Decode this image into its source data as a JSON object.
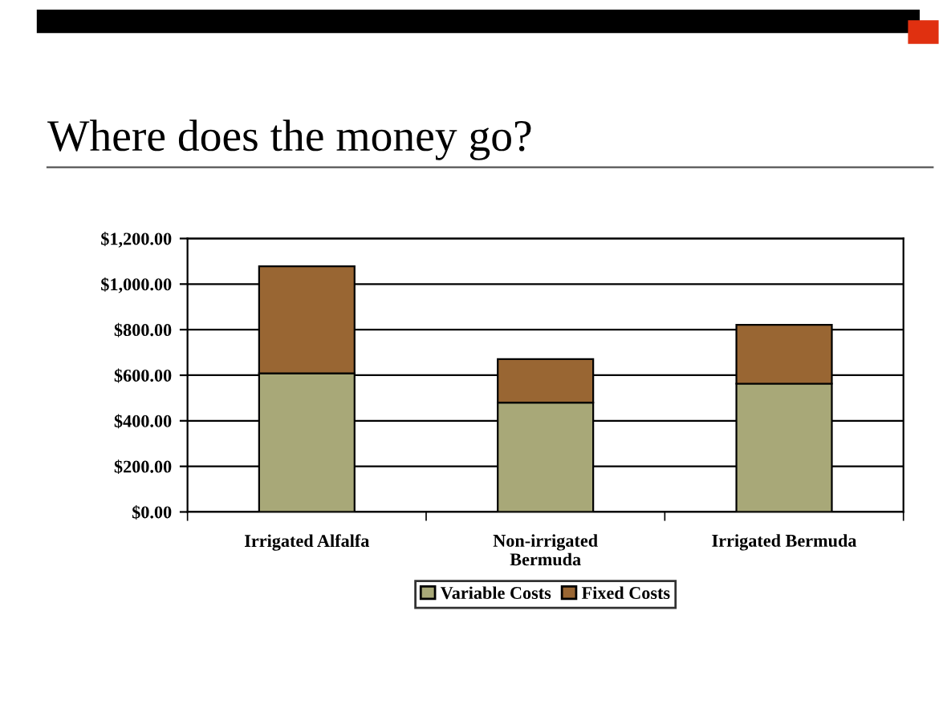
{
  "chart_data": {
    "type": "bar",
    "title": "Where does the money go?",
    "stacked": true,
    "categories": [
      "Irrigated Alfalfa",
      "Non-irrigated\nBermuda",
      "Irrigated Bermuda"
    ],
    "series": [
      {
        "name": "Variable Costs",
        "color": "#a8a878",
        "values": [
          608,
          480,
          563
        ]
      },
      {
        "name": "Fixed Costs",
        "color": "#996633",
        "values": [
          470,
          191,
          258
        ]
      }
    ],
    "ylim": [
      0,
      1200
    ],
    "yticks": [
      {
        "value": 0,
        "label": "$0.00"
      },
      {
        "value": 200,
        "label": "$200.00"
      },
      {
        "value": 400,
        "label": "$400.00"
      },
      {
        "value": 600,
        "label": "$600.00"
      },
      {
        "value": 800,
        "label": "$800.00"
      },
      {
        "value": 1000,
        "label": "$1,000.00"
      },
      {
        "value": 1200,
        "label": "$1,200.00"
      }
    ],
    "grid": "y",
    "legend": "bottom"
  }
}
